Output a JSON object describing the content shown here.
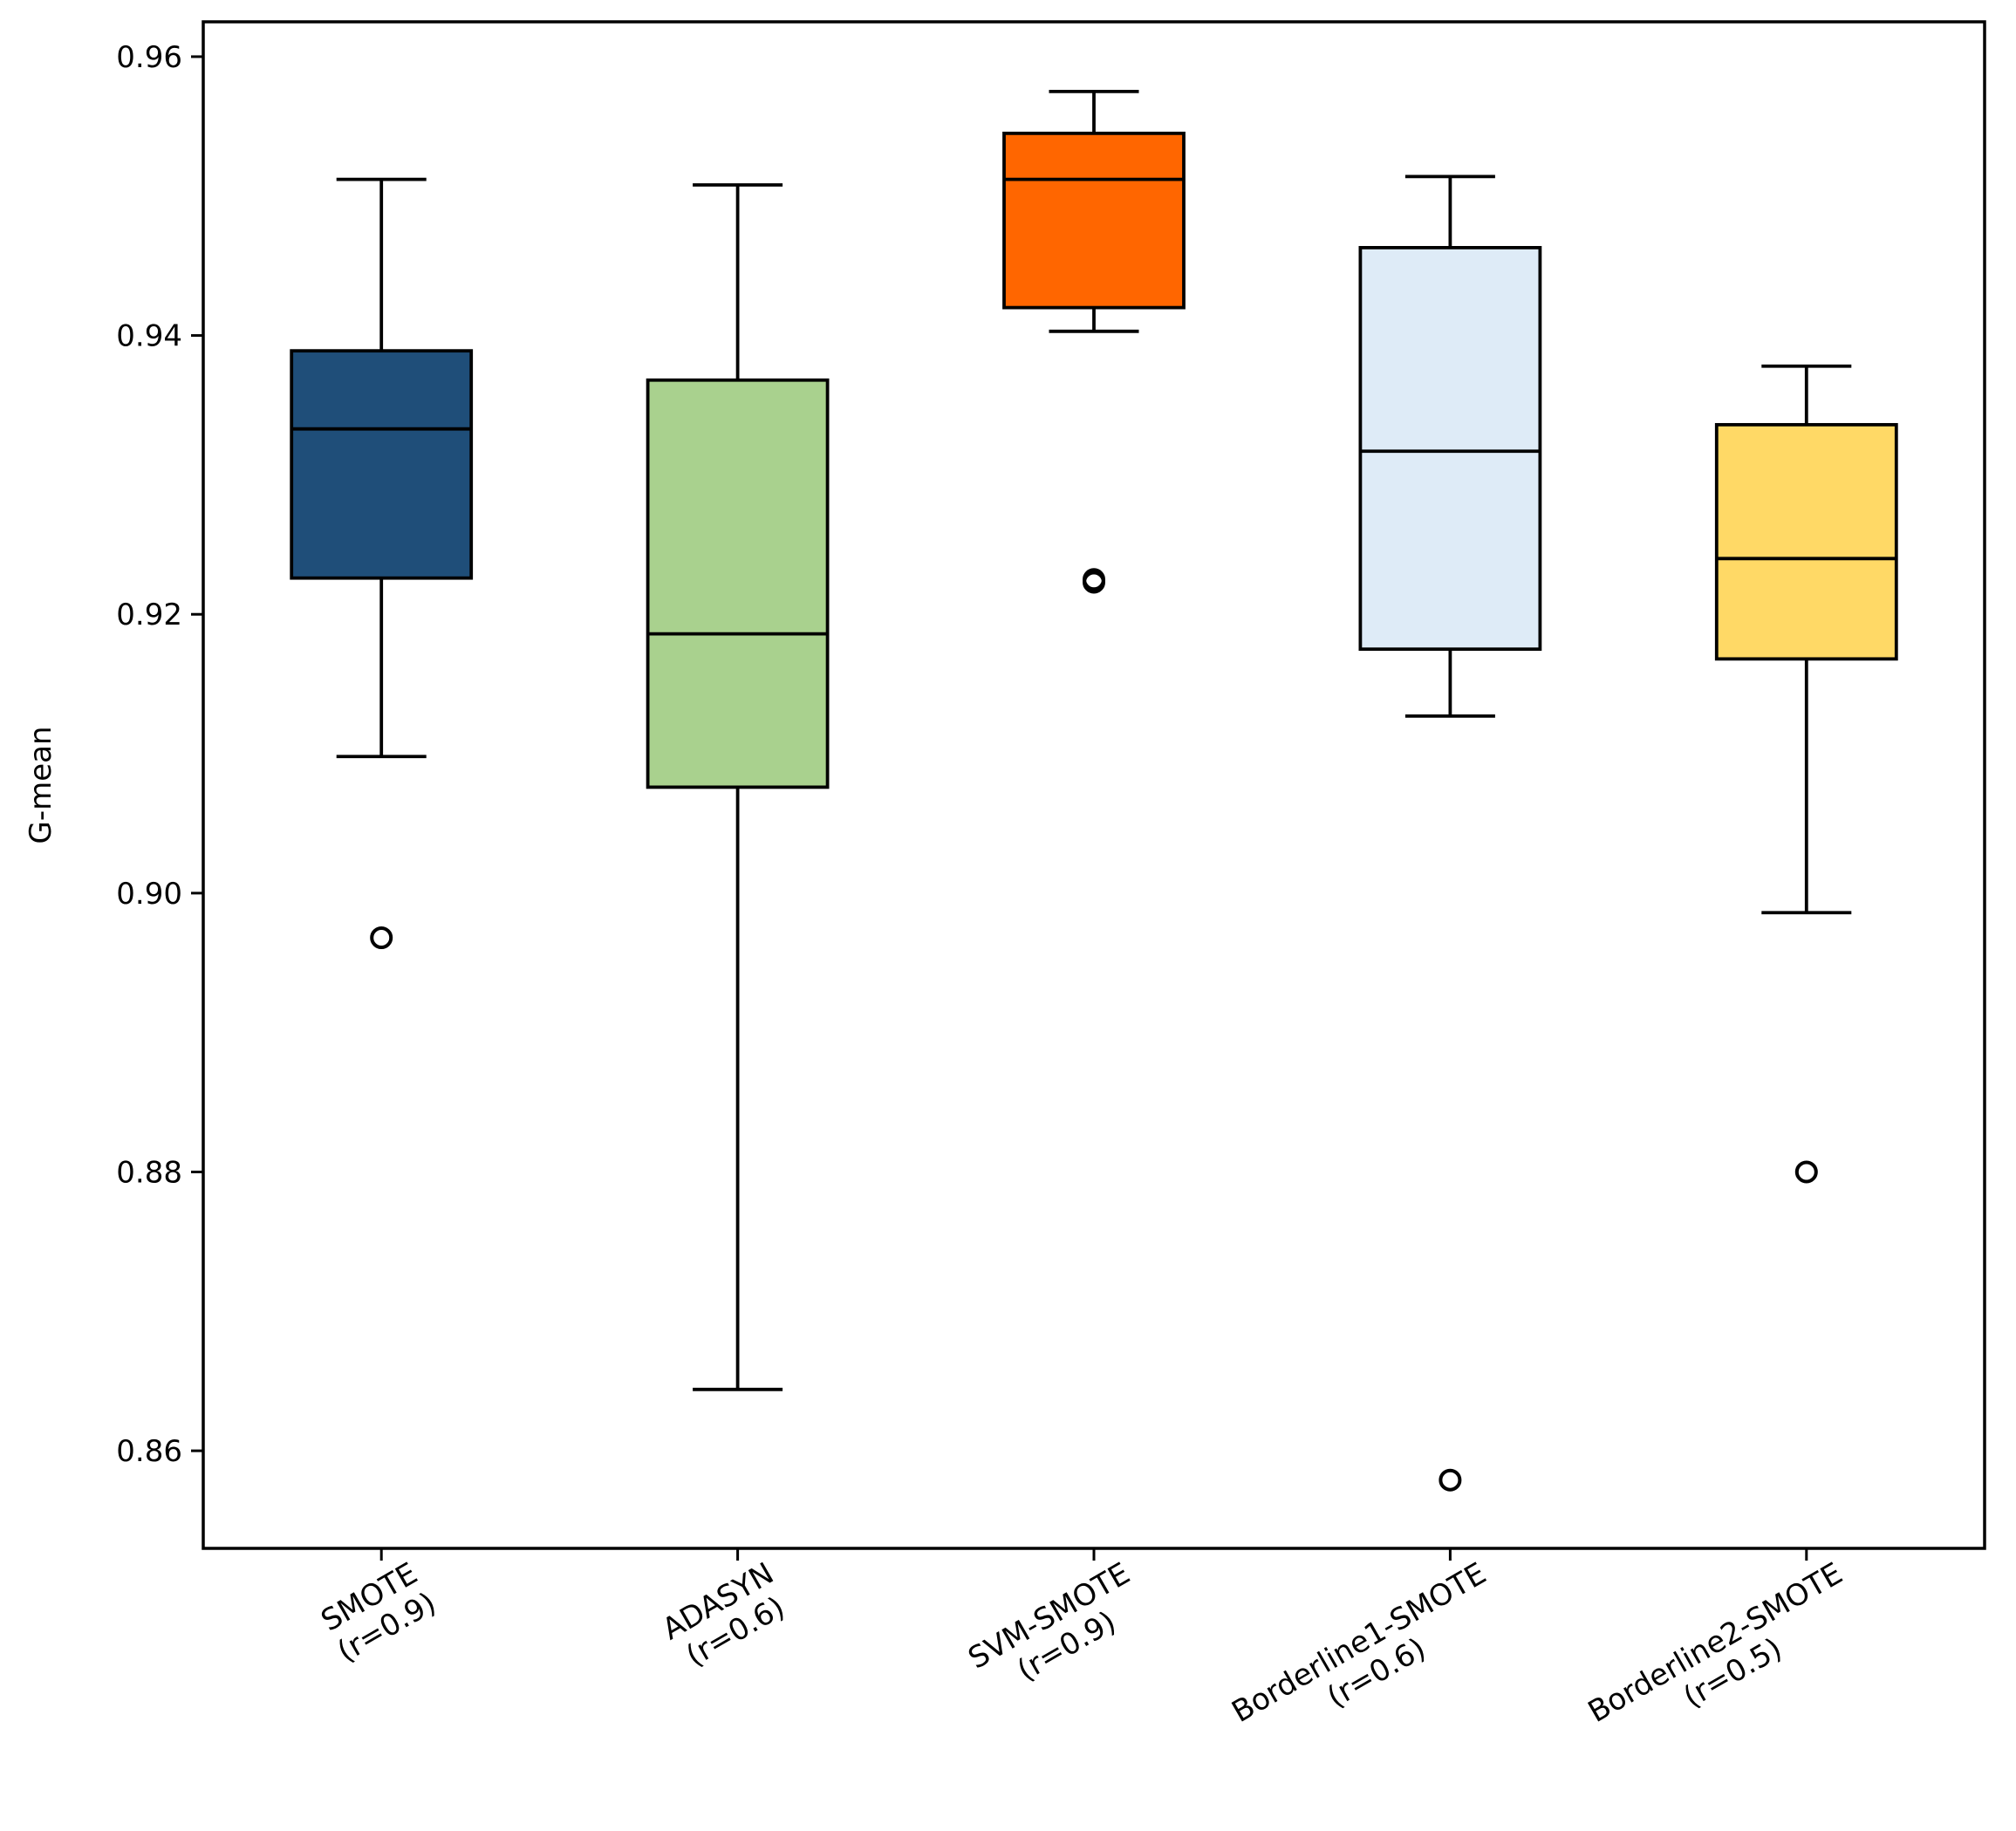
{
  "chart_data": {
    "type": "boxplot",
    "title": "",
    "xlabel": "",
    "ylabel": "G-mean",
    "ylim": [
      0.853,
      0.9625
    ],
    "yticks": [
      0.86,
      0.88,
      0.9,
      0.92,
      0.94,
      0.96
    ],
    "ytick_labels": [
      "0.86",
      "0.88",
      "0.90",
      "0.92",
      "0.94",
      "0.96"
    ],
    "grid": false,
    "categories": [
      "SMOTE\n(r=0.9)",
      "ADASYN\n(r=0.6)",
      "SVM-SMOTE\n(r=0.9)",
      "Borderline1-SMOTE\n(r=0.6)",
      "Borderline2-SMOTE\n(r=0.5)"
    ],
    "boxes": [
      {
        "name": "SMOTE (r=0.9)",
        "whisker_low": 0.9098,
        "q1": 0.9226,
        "median": 0.9333,
        "q3": 0.9389,
        "whisker_high": 0.9512,
        "outliers": [
          0.8968
        ],
        "color": "#1f4e79"
      },
      {
        "name": "ADASYN (r=0.6)",
        "whisker_low": 0.8644,
        "q1": 0.9076,
        "median": 0.9186,
        "q3": 0.9368,
        "whisker_high": 0.9508,
        "outliers": [],
        "color": "#a9d18e"
      },
      {
        "name": "SVM-SMOTE (r=0.9)",
        "whisker_low": 0.9403,
        "q1": 0.942,
        "median": 0.9512,
        "q3": 0.9545,
        "whisker_high": 0.9575,
        "outliers": [
          0.9223,
          0.9225
        ],
        "color": "#ff6600"
      },
      {
        "name": "Borderline1-SMOTE (r=0.6)",
        "whisker_low": 0.9127,
        "q1": 0.9175,
        "median": 0.9317,
        "q3": 0.9463,
        "whisker_high": 0.9514,
        "outliers": [
          0.8579
        ],
        "color": "#deebf7"
      },
      {
        "name": "Borderline2-SMOTE (r=0.5)",
        "whisker_low": 0.8986,
        "q1": 0.9168,
        "median": 0.924,
        "q3": 0.9336,
        "whisker_high": 0.9378,
        "outliers": [
          0.88
        ],
        "color": "#ffd966"
      }
    ]
  }
}
